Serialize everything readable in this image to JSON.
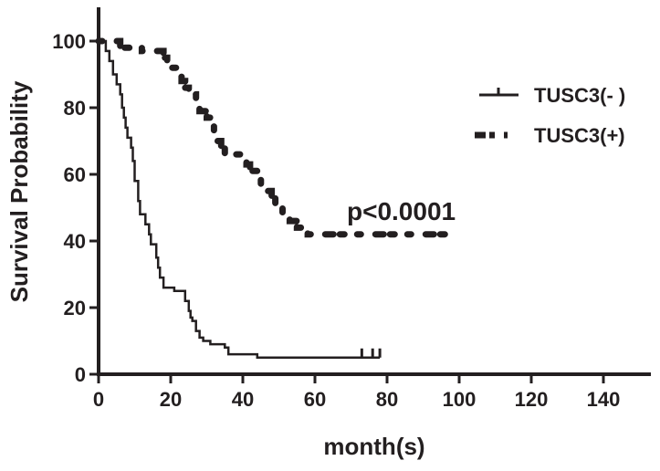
{
  "chart_data": {
    "type": "line",
    "subtype": "kaplan-meier",
    "title": "",
    "xlabel": "month(s)",
    "ylabel": "Survival Probability",
    "xlim": [
      0,
      150
    ],
    "ylim": [
      0,
      110
    ],
    "xticks": [
      0,
      20,
      40,
      60,
      80,
      100,
      120,
      140
    ],
    "yticks": [
      0,
      20,
      40,
      60,
      80,
      100
    ],
    "xtick_labels": [
      "0",
      "20",
      "40",
      "60",
      "80",
      "100",
      "120",
      "140"
    ],
    "ytick_labels": [
      "0",
      "20",
      "40",
      "60",
      "80",
      "100"
    ],
    "grid": false,
    "legend_position": "right",
    "annotation": "p<0.0001",
    "colors": {
      "ink": "#231f20"
    },
    "series": [
      {
        "name": "TUSC3(- )",
        "style": "solid",
        "censored_at_end": [
          73,
          76,
          78
        ],
        "points": [
          [
            0,
            100
          ],
          [
            2,
            100
          ],
          [
            2,
            97
          ],
          [
            3,
            97
          ],
          [
            3,
            94
          ],
          [
            4,
            94
          ],
          [
            4,
            90
          ],
          [
            5,
            90
          ],
          [
            5,
            87
          ],
          [
            6,
            87
          ],
          [
            6,
            84
          ],
          [
            6.5,
            84
          ],
          [
            6.5,
            80
          ],
          [
            7,
            80
          ],
          [
            7,
            77
          ],
          [
            7.5,
            77
          ],
          [
            7.5,
            74
          ],
          [
            8,
            74
          ],
          [
            8,
            71
          ],
          [
            9,
            71
          ],
          [
            9,
            68
          ],
          [
            9.5,
            68
          ],
          [
            9.5,
            64
          ],
          [
            10,
            64
          ],
          [
            10,
            58
          ],
          [
            11,
            58
          ],
          [
            11,
            52
          ],
          [
            11.5,
            52
          ],
          [
            11.5,
            48
          ],
          [
            13,
            48
          ],
          [
            13,
            45
          ],
          [
            14,
            45
          ],
          [
            14,
            42
          ],
          [
            14.5,
            42
          ],
          [
            14.5,
            39
          ],
          [
            16,
            39
          ],
          [
            16,
            35
          ],
          [
            16.5,
            35
          ],
          [
            16.5,
            32
          ],
          [
            17,
            32
          ],
          [
            17,
            29
          ],
          [
            18,
            29
          ],
          [
            18,
            26
          ],
          [
            21,
            26
          ],
          [
            21,
            25
          ],
          [
            24,
            25
          ],
          [
            24,
            22
          ],
          [
            25,
            22
          ],
          [
            25,
            19
          ],
          [
            25.5,
            19
          ],
          [
            25.5,
            17
          ],
          [
            26,
            17
          ],
          [
            26,
            16
          ],
          [
            27,
            16
          ],
          [
            27,
            13
          ],
          [
            28,
            13
          ],
          [
            28,
            11
          ],
          [
            29,
            11
          ],
          [
            29,
            10
          ],
          [
            31,
            10
          ],
          [
            31,
            9
          ],
          [
            35,
            9
          ],
          [
            35,
            8
          ],
          [
            36,
            8
          ],
          [
            36,
            6
          ],
          [
            44,
            6
          ],
          [
            44,
            5
          ],
          [
            78,
            5
          ]
        ]
      },
      {
        "name": "TUSC3(+)",
        "style": "dotted",
        "censored_at_end": [],
        "points": [
          [
            0,
            100
          ],
          [
            6,
            100
          ],
          [
            6,
            98
          ],
          [
            12,
            98
          ],
          [
            12,
            97
          ],
          [
            18,
            97
          ],
          [
            18,
            95
          ],
          [
            19,
            95
          ],
          [
            19,
            94
          ],
          [
            20,
            94
          ],
          [
            20,
            92
          ],
          [
            22,
            92
          ],
          [
            22,
            90
          ],
          [
            23,
            90
          ],
          [
            23,
            88
          ],
          [
            24,
            88
          ],
          [
            24,
            86
          ],
          [
            25,
            86
          ],
          [
            25,
            84
          ],
          [
            27,
            84
          ],
          [
            27,
            81
          ],
          [
            28,
            81
          ],
          [
            28,
            79
          ],
          [
            30,
            79
          ],
          [
            30,
            77
          ],
          [
            31,
            77
          ],
          [
            31,
            75
          ],
          [
            32,
            75
          ],
          [
            32,
            72
          ],
          [
            33,
            72
          ],
          [
            33,
            70
          ],
          [
            34,
            70
          ],
          [
            34,
            68
          ],
          [
            35,
            68
          ],
          [
            35,
            66
          ],
          [
            41,
            66
          ],
          [
            41,
            63
          ],
          [
            42,
            63
          ],
          [
            42,
            61
          ],
          [
            44,
            61
          ],
          [
            44,
            59
          ],
          [
            45,
            59
          ],
          [
            45,
            57
          ],
          [
            46,
            57
          ],
          [
            46,
            55
          ],
          [
            48,
            55
          ],
          [
            48,
            53
          ],
          [
            49,
            53
          ],
          [
            49,
            50
          ],
          [
            51,
            50
          ],
          [
            51,
            48
          ],
          [
            53,
            48
          ],
          [
            53,
            46
          ],
          [
            55,
            46
          ],
          [
            55,
            44
          ],
          [
            58,
            44
          ],
          [
            58,
            42
          ],
          [
            97,
            42
          ]
        ]
      }
    ]
  }
}
